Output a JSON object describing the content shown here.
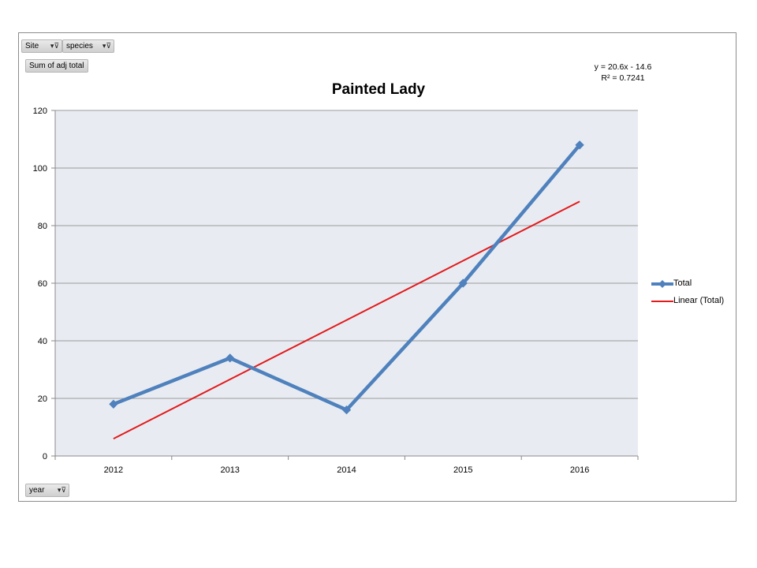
{
  "pivot_buttons": {
    "site": "Site",
    "species": "species",
    "sum": "Sum of adj total",
    "year": "year"
  },
  "trendline": {
    "equation": "y = 20.6x - 14.6",
    "r2": "R² = 0.7241"
  },
  "colors": {
    "total": "#4f81bd",
    "linear": "#e31a1c",
    "plot_bg": "#e8ecf2",
    "grid": "#9a9a9a"
  },
  "chart_data": {
    "type": "line",
    "title": "Painted Lady",
    "categories": [
      "2012",
      "2013",
      "2014",
      "2015",
      "2016"
    ],
    "ylim": [
      0,
      120
    ],
    "yticks": [
      0,
      20,
      40,
      60,
      80,
      100,
      120
    ],
    "grid": true,
    "legend_position": "right",
    "series": [
      {
        "name": "Total",
        "values": [
          18,
          34,
          16,
          60,
          108
        ],
        "marker": "diamond"
      },
      {
        "name": "Linear (Total)",
        "values": [
          6,
          26.6,
          47.2,
          67.8,
          88.4
        ],
        "marker": "none"
      }
    ]
  }
}
